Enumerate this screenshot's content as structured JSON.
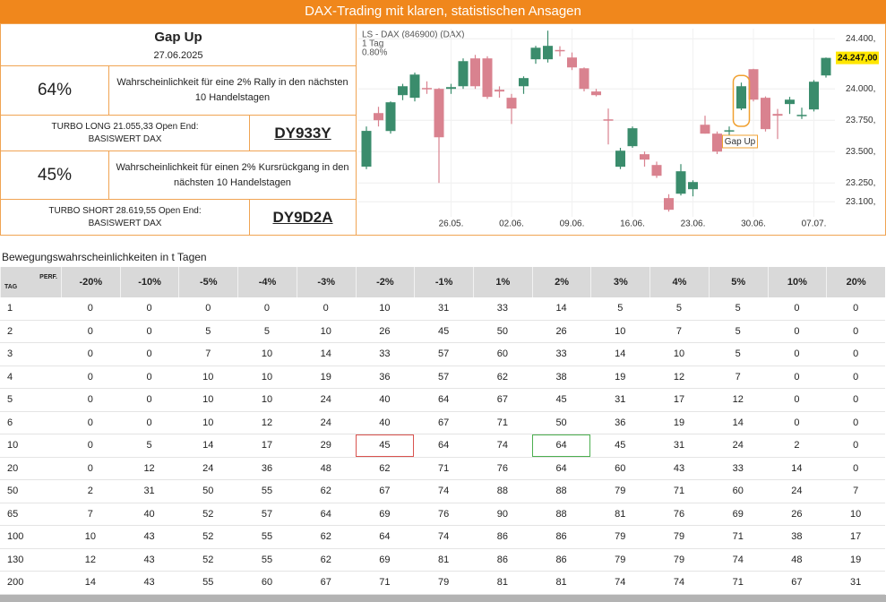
{
  "header": {
    "title": "DAX-Trading mit klaren, statistischen Ansagen"
  },
  "panel": {
    "title": "Gap Up",
    "date": "27.06.2025",
    "long": {
      "probability": "64%",
      "description": [
        "Wahrscheinlichkeit für eine 2% Rally in den nächsten",
        "10 Handelstagen"
      ],
      "turbo": [
        "TURBO LONG 21.055,33 Open End:",
        "BASISWERT DAX"
      ],
      "code": "DY933Y"
    },
    "short": {
      "probability": "45%",
      "description": [
        "Wahrscheinlichkeit für einen 2% Kursrückgang in den",
        "nächsten 10 Handelstagen"
      ],
      "turbo": [
        "TURBO SHORT 28.619,55 Open End:",
        "BASISWERT DAX"
      ],
      "code": "DY9D2A"
    }
  },
  "chart_data": {
    "type": "candlestick",
    "title": "LS - DAX (846900) (DAX)",
    "interval": "1 Tag",
    "change": "0.80%",
    "categories": [
      null,
      null,
      null,
      null,
      null,
      null,
      null,
      "26.05.",
      null,
      null,
      null,
      null,
      "02.06.",
      null,
      null,
      null,
      null,
      "09.06.",
      null,
      null,
      null,
      null,
      "16.06.",
      null,
      null,
      null,
      null,
      "23.06.",
      null,
      null,
      null,
      null,
      "30.06.",
      null,
      null,
      null,
      null,
      "07.07.",
      null
    ],
    "open": [
      23380,
      23807,
      23664,
      23950,
      23929,
      24007,
      24000,
      24000,
      24021,
      24243,
      24243,
      23993,
      23929,
      24021,
      24236,
      24236,
      24310,
      24250,
      24164,
      23979,
      23757,
      23379,
      23543,
      23479,
      23393,
      23129,
      23164,
      23200,
      23714,
      23643,
      23660,
      23843,
      24157,
      23929,
      23800,
      23879,
      23786,
      23836,
      24107
    ],
    "high": [
      23700,
      23857,
      23900,
      24040,
      24130,
      24060,
      24007,
      24040,
      24243,
      24271,
      24260,
      24020,
      23960,
      24100,
      24343,
      24464,
      24340,
      24290,
      24171,
      24000,
      23843,
      23530,
      23700,
      23500,
      23420,
      23160,
      23400,
      23271,
      23786,
      23660,
      23700,
      24050,
      24160,
      23940,
      23840,
      23936,
      23850,
      24070,
      24250
    ],
    "low": [
      23360,
      23700,
      23643,
      23910,
      23900,
      23960,
      23250,
      23960,
      24000,
      24000,
      23920,
      23930,
      23720,
      23960,
      24200,
      24210,
      24260,
      24150,
      23980,
      23940,
      23557,
      23360,
      23530,
      23380,
      23290,
      23021,
      23150,
      23143,
      23643,
      23480,
      23560,
      23830,
      23900,
      23660,
      23600,
      23800,
      23760,
      23820,
      24090
    ],
    "close": [
      23665,
      23750,
      23893,
      24021,
      24114,
      24000,
      23614,
      24014,
      24221,
      24021,
      23936,
      23979,
      23843,
      24086,
      24328,
      24343,
      24300,
      24171,
      24000,
      23950,
      23750,
      23507,
      23686,
      23436,
      23307,
      23036,
      23343,
      23257,
      23643,
      23500,
      23670,
      24021,
      23914,
      23679,
      23786,
      23914,
      23793,
      24057,
      24247
    ],
    "up_color": "#3a8c6c",
    "down_color": "#d9828f",
    "ylim": [
      22980,
      24480
    ],
    "yticks": [
      {
        "value": 24400,
        "label": "24.400,"
      },
      {
        "value": 24000,
        "label": "24.000,"
      },
      {
        "value": 23750,
        "label": "23.750,"
      },
      {
        "value": 23500,
        "label": "23.500,"
      },
      {
        "value": 23250,
        "label": "23.250,"
      },
      {
        "value": 23100,
        "label": "23.100,"
      }
    ],
    "last_price": {
      "value": 24247,
      "label": "24.247,00"
    },
    "grid": true,
    "annotation": {
      "text": "Gap Up",
      "index": 31
    }
  },
  "table": {
    "title": "Bewegungswahrscheinlichkeiten in t Tagen",
    "corner_row": "TAG",
    "corner_col": "PERF.",
    "columns": [
      "-20%",
      "-10%",
      "-5%",
      "-4%",
      "-3%",
      "-2%",
      "-1%",
      "1%",
      "2%",
      "3%",
      "4%",
      "5%",
      "10%",
      "20%"
    ],
    "rows": [
      {
        "tag": 1,
        "values": [
          0,
          0,
          0,
          0,
          0,
          10,
          31,
          33,
          14,
          5,
          5,
          5,
          0,
          0
        ]
      },
      {
        "tag": 2,
        "values": [
          0,
          0,
          5,
          5,
          10,
          26,
          45,
          50,
          26,
          10,
          7,
          5,
          0,
          0
        ]
      },
      {
        "tag": 3,
        "values": [
          0,
          0,
          7,
          10,
          14,
          33,
          57,
          60,
          33,
          14,
          10,
          5,
          0,
          0
        ]
      },
      {
        "tag": 4,
        "values": [
          0,
          0,
          10,
          10,
          19,
          36,
          57,
          62,
          38,
          19,
          12,
          7,
          0,
          0
        ]
      },
      {
        "tag": 5,
        "values": [
          0,
          0,
          10,
          10,
          24,
          40,
          64,
          67,
          45,
          31,
          17,
          12,
          0,
          0
        ]
      },
      {
        "tag": 6,
        "values": [
          0,
          0,
          10,
          12,
          24,
          40,
          67,
          71,
          50,
          36,
          19,
          14,
          0,
          0
        ]
      },
      {
        "tag": 10,
        "values": [
          0,
          5,
          14,
          17,
          29,
          45,
          64,
          74,
          64,
          45,
          31,
          24,
          2,
          0
        ]
      },
      {
        "tag": 20,
        "values": [
          0,
          12,
          24,
          36,
          48,
          62,
          71,
          76,
          64,
          60,
          43,
          33,
          14,
          0
        ]
      },
      {
        "tag": 50,
        "values": [
          2,
          31,
          50,
          55,
          62,
          67,
          74,
          88,
          88,
          79,
          71,
          60,
          24,
          7
        ]
      },
      {
        "tag": 65,
        "values": [
          7,
          40,
          52,
          57,
          64,
          69,
          76,
          90,
          88,
          81,
          76,
          69,
          26,
          10
        ]
      },
      {
        "tag": 100,
        "values": [
          10,
          43,
          52,
          55,
          62,
          64,
          74,
          86,
          86,
          79,
          79,
          71,
          38,
          17
        ]
      },
      {
        "tag": 130,
        "values": [
          12,
          43,
          52,
          55,
          62,
          69,
          81,
          86,
          86,
          79,
          79,
          74,
          48,
          19
        ]
      },
      {
        "tag": 200,
        "values": [
          14,
          43,
          55,
          60,
          67,
          71,
          79,
          81,
          81,
          74,
          74,
          71,
          67,
          31
        ]
      }
    ]
  }
}
